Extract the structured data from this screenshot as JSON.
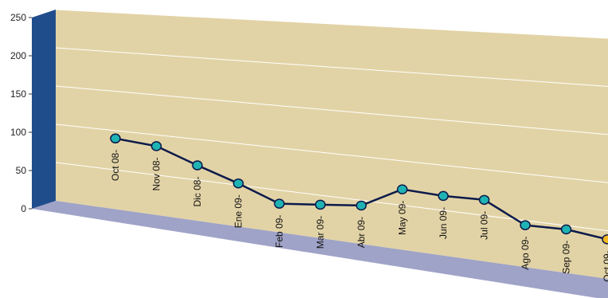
{
  "chart_data": {
    "type": "line",
    "title": "",
    "xlabel": "",
    "ylabel": "",
    "ylim": [
      0,
      250
    ],
    "yticks": [
      0,
      50,
      100,
      150,
      200,
      250
    ],
    "categories": [
      "Oct 08-",
      "Nov 08-",
      "Dic 08-",
      "Ene 09-",
      "Feb 09-",
      "Mar 09-",
      "Abr 09-",
      "May 09-",
      "Jun 09-",
      "Jul 09-",
      "Ago 09-",
      "Sep 09-",
      "Oct 09-"
    ],
    "values": [
      90,
      86,
      68,
      52,
      34,
      39,
      44,
      68,
      66,
      67,
      45,
      46,
      41
    ],
    "grid": true,
    "legend": "none",
    "three_d": true,
    "highlight_last_point": true,
    "colors": {
      "wall": "#e2d3a6",
      "floor": "#9fa3c7",
      "side_wall": "#1f4d8c",
      "grid": "#ffffff",
      "line": "#0c1a4a",
      "marker": "#1fb3b3",
      "marker_highlight": "#f2b81f"
    }
  }
}
